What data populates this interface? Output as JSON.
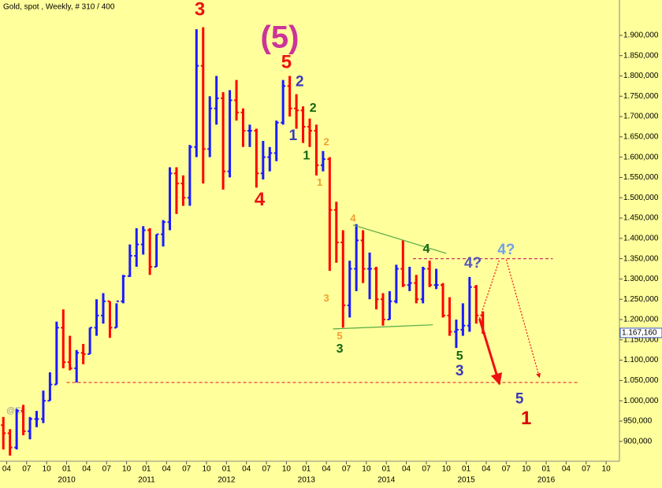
{
  "chart_data": {
    "type": "ohlc",
    "title": "Gold, spot , Weekly, # 310 / 400",
    "watermark": "@Eli",
    "up_color": "#1a1aff",
    "down_color": "#ff0000",
    "x": [
      "2009-03",
      "2009-04",
      "2009-05",
      "2009-06",
      "2009-07",
      "2009-08",
      "2009-09",
      "2009-10",
      "2009-11",
      "2009-12",
      "2010-01",
      "2010-02",
      "2010-03",
      "2010-04",
      "2010-05",
      "2010-06",
      "2010-07",
      "2010-08",
      "2010-09",
      "2010-10",
      "2010-11",
      "2010-12",
      "2011-01",
      "2011-02",
      "2011-03",
      "2011-04",
      "2011-05",
      "2011-06",
      "2011-07",
      "2011-08",
      "2011-09",
      "2011-10",
      "2011-11",
      "2011-12",
      "2012-01",
      "2012-02",
      "2012-03",
      "2012-04",
      "2012-05",
      "2012-06",
      "2012-07",
      "2012-08",
      "2012-09",
      "2012-10",
      "2012-11",
      "2012-12",
      "2013-01",
      "2013-02",
      "2013-03",
      "2013-04",
      "2013-05",
      "2013-06",
      "2013-07",
      "2013-08",
      "2013-09",
      "2013-10",
      "2013-11",
      "2013-12",
      "2014-01",
      "2014-02",
      "2014-03",
      "2014-04",
      "2014-05",
      "2014-06",
      "2014-07",
      "2014-08",
      "2014-09",
      "2014-10",
      "2014-11",
      "2014-12",
      "2015-01",
      "2015-02",
      "2015-03"
    ],
    "open": [
      940,
      920,
      885,
      975,
      925,
      955,
      955,
      1000,
      1040,
      1180,
      1095,
      1080,
      1118,
      1115,
      1180,
      1210,
      1245,
      1180,
      1245,
      1307,
      1357,
      1385,
      1420,
      1330,
      1410,
      1440,
      1560,
      1535,
      1500,
      1625,
      1825,
      1620,
      1720,
      1745,
      1565,
      1740,
      1710,
      1665,
      1665,
      1560,
      1600,
      1610,
      1685,
      1775,
      1720,
      1715,
      1675,
      1665,
      1580,
      1595,
      1470,
      1390,
      1235,
      1325,
      1395,
      1325,
      1325,
      1250,
      1200,
      1245,
      1325,
      1285,
      1290,
      1250,
      1325,
      1285,
      1285,
      1210,
      1170,
      1175,
      1185,
      1280,
      1210
    ],
    "high": [
      960,
      930,
      980,
      990,
      960,
      975,
      1025,
      1070,
      1195,
      1225,
      1160,
      1125,
      1140,
      1180,
      1250,
      1265,
      1245,
      1240,
      1310,
      1385,
      1425,
      1430,
      1425,
      1410,
      1445,
      1575,
      1575,
      1555,
      1630,
      1915,
      1920,
      1750,
      1800,
      1760,
      1765,
      1790,
      1720,
      1680,
      1670,
      1640,
      1625,
      1690,
      1790,
      1800,
      1755,
      1725,
      1695,
      1680,
      1615,
      1600,
      1490,
      1420,
      1345,
      1435,
      1420,
      1365,
      1330,
      1265,
      1270,
      1335,
      1395,
      1330,
      1310,
      1330,
      1345,
      1325,
      1290,
      1255,
      1200,
      1240,
      1305,
      1285,
      1220
    ],
    "low": [
      880,
      865,
      880,
      915,
      905,
      935,
      945,
      1000,
      1040,
      1080,
      1075,
      1045,
      1090,
      1115,
      1160,
      1190,
      1155,
      1180,
      1240,
      1305,
      1330,
      1360,
      1310,
      1330,
      1380,
      1420,
      1460,
      1480,
      1480,
      1600,
      1535,
      1600,
      1680,
      1520,
      1550,
      1690,
      1625,
      1625,
      1525,
      1545,
      1565,
      1590,
      1680,
      1700,
      1670,
      1635,
      1625,
      1555,
      1565,
      1320,
      1340,
      1180,
      1205,
      1270,
      1290,
      1250,
      1225,
      1185,
      1200,
      1240,
      1280,
      1270,
      1240,
      1240,
      1280,
      1275,
      1205,
      1160,
      1130,
      1160,
      1170,
      1190,
      1165
    ],
    "close": [
      920,
      885,
      975,
      925,
      955,
      955,
      1000,
      1040,
      1180,
      1095,
      1080,
      1118,
      1115,
      1180,
      1210,
      1245,
      1180,
      1245,
      1307,
      1357,
      1385,
      1420,
      1330,
      1410,
      1440,
      1560,
      1535,
      1500,
      1625,
      1825,
      1620,
      1720,
      1745,
      1565,
      1740,
      1710,
      1665,
      1665,
      1560,
      1600,
      1610,
      1685,
      1775,
      1720,
      1715,
      1675,
      1665,
      1580,
      1595,
      1470,
      1390,
      1235,
      1325,
      1395,
      1325,
      1325,
      1250,
      1200,
      1245,
      1325,
      1285,
      1290,
      1250,
      1325,
      1285,
      1285,
      1210,
      1170,
      1175,
      1185,
      1280,
      1210,
      1167
    ],
    "xlim": [
      "2009-03",
      "2016-12"
    ],
    "ylim": [
      853,
      1987
    ],
    "xticks": [
      {
        "value": "2009-04",
        "label": "04"
      },
      {
        "value": "2009-07",
        "label": "07"
      },
      {
        "value": "2009-10",
        "label": "10"
      },
      {
        "value": "2010-01",
        "label": "01"
      },
      {
        "value": "2010-04",
        "label": "04"
      },
      {
        "value": "2010-07",
        "label": "07"
      },
      {
        "value": "2010-10",
        "label": "10"
      },
      {
        "value": "2011-01",
        "label": "01"
      },
      {
        "value": "2011-04",
        "label": "04"
      },
      {
        "value": "2011-07",
        "label": "07"
      },
      {
        "value": "2011-10",
        "label": "10"
      },
      {
        "value": "2012-01",
        "label": "01"
      },
      {
        "value": "2012-04",
        "label": "04"
      },
      {
        "value": "2012-07",
        "label": "07"
      },
      {
        "value": "2012-10",
        "label": "10"
      },
      {
        "value": "2013-01",
        "label": "01"
      },
      {
        "value": "2013-04",
        "label": "04"
      },
      {
        "value": "2013-07",
        "label": "07"
      },
      {
        "value": "2013-10",
        "label": "10"
      },
      {
        "value": "2014-01",
        "label": "01"
      },
      {
        "value": "2014-04",
        "label": "04"
      },
      {
        "value": "2014-07",
        "label": "07"
      },
      {
        "value": "2014-10",
        "label": "10"
      },
      {
        "value": "2015-01",
        "label": "01"
      },
      {
        "value": "2015-04",
        "label": "04"
      },
      {
        "value": "2015-07",
        "label": "07"
      },
      {
        "value": "2015-10",
        "label": "10"
      },
      {
        "value": "2016-01",
        "label": "01"
      },
      {
        "value": "2016-04",
        "label": "04"
      },
      {
        "value": "2016-07",
        "label": "07"
      },
      {
        "value": "2016-10",
        "label": "10"
      }
    ],
    "year_labels": [
      {
        "value": "2010-01",
        "label": "2010"
      },
      {
        "value": "2011-01",
        "label": "2011"
      },
      {
        "value": "2012-01",
        "label": "2012"
      },
      {
        "value": "2013-01",
        "label": "2013"
      },
      {
        "value": "2014-01",
        "label": "2014"
      },
      {
        "value": "2015-01",
        "label": "2015"
      },
      {
        "value": "2016-01",
        "label": "2016"
      }
    ],
    "yticks": [
      {
        "value": 900,
        "label": "900,000"
      },
      {
        "value": 950,
        "label": "950,000"
      },
      {
        "value": 1000,
        "label": "1.000,000"
      },
      {
        "value": 1050,
        "label": "1.050,000"
      },
      {
        "value": 1100,
        "label": "1.100,000"
      },
      {
        "value": 1150,
        "label": "1.150,000"
      },
      {
        "value": 1200,
        "label": "1.200,000"
      },
      {
        "value": 1250,
        "label": "1.250,000"
      },
      {
        "value": 1300,
        "label": "1.300,000"
      },
      {
        "value": 1350,
        "label": "1.350,000"
      },
      {
        "value": 1400,
        "label": "1.400,000"
      },
      {
        "value": 1450,
        "label": "1.450,000"
      },
      {
        "value": 1500,
        "label": "1.500,000"
      },
      {
        "value": 1550,
        "label": "1.550,000"
      },
      {
        "value": 1600,
        "label": "1.600,000"
      },
      {
        "value": 1650,
        "label": "1.650,000"
      },
      {
        "value": 1700,
        "label": "1.700,000"
      },
      {
        "value": 1750,
        "label": "1.750,000"
      },
      {
        "value": 1800,
        "label": "1.800,000"
      },
      {
        "value": 1850,
        "label": "1.850,000"
      },
      {
        "value": 1900,
        "label": "1.900,000"
      }
    ],
    "last_price": {
      "value": 1167.16,
      "label": "1.167,160"
    },
    "annotations": [
      {
        "text": "(5)",
        "x": "2012-09",
        "y": 1890,
        "color": "#cc3399",
        "size": "xl"
      },
      {
        "text": "3",
        "x": "2011-09",
        "y": 1962,
        "color": "#ee1111",
        "size": "l"
      },
      {
        "text": "5",
        "x": "2012-10",
        "y": 1832,
        "color": "#ee1111",
        "size": "l"
      },
      {
        "text": "2",
        "x": "2012-12",
        "y": 1784,
        "color": "#3b3bb8",
        "size": "m"
      },
      {
        "text": "2",
        "x": "2013-02",
        "y": 1720,
        "color": "#116611",
        "size": "s"
      },
      {
        "text": "1",
        "x": "2012-11",
        "y": 1652,
        "color": "#3b3bb8",
        "size": "m"
      },
      {
        "text": "1",
        "x": "2013-01",
        "y": 1603,
        "color": "#116611",
        "size": "s"
      },
      {
        "text": "2",
        "x": "2013-04",
        "y": 1636,
        "color": "#f0a030",
        "size": "xs"
      },
      {
        "text": "1",
        "x": "2013-03",
        "y": 1536,
        "color": "#f0a030",
        "size": "xs"
      },
      {
        "text": "4",
        "x": "2012-06",
        "y": 1493,
        "color": "#ee1111",
        "size": "l"
      },
      {
        "text": "4",
        "x": "2013-08",
        "y": 1448,
        "color": "#f0a030",
        "size": "xs"
      },
      {
        "text": "3",
        "x": "2013-04",
        "y": 1251,
        "color": "#f0a030",
        "size": "xs"
      },
      {
        "text": "5",
        "x": "2013-06",
        "y": 1158,
        "color": "#f0a030",
        "size": "xs"
      },
      {
        "text": "3",
        "x": "2013-06",
        "y": 1127,
        "color": "#116611",
        "size": "s"
      },
      {
        "text": "4",
        "x": "2014-07",
        "y": 1373,
        "color": "#116611",
        "size": "s"
      },
      {
        "text": "4?",
        "x": "2015-02",
        "y": 1338,
        "color": "#5555bb",
        "size": "m"
      },
      {
        "text": "4?",
        "x": "2015-07",
        "y": 1371,
        "color": "#6fa0e8",
        "size": "m"
      },
      {
        "text": "5",
        "x": "2014-12",
        "y": 1109,
        "color": "#116611",
        "size": "s"
      },
      {
        "text": "3",
        "x": "2014-12",
        "y": 1072,
        "color": "#3b3bb8",
        "size": "m"
      },
      {
        "text": "5",
        "x": "2015-09",
        "y": 1003,
        "color": "#3b3bb8",
        "size": "m"
      },
      {
        "text": "1",
        "x": "2015-10",
        "y": 954,
        "color": "#dd0000",
        "size": "l"
      }
    ],
    "lines": [
      {
        "x1": "2013-08",
        "y1": 1433,
        "x2": "2014-10",
        "y2": 1363,
        "color": "#55aa44",
        "style": "solid"
      },
      {
        "x1": "2013-05",
        "y1": 1177,
        "x2": "2014-08",
        "y2": 1187,
        "color": "#55aa44",
        "style": "solid"
      },
      {
        "x1": "2010-01",
        "y1": 1045,
        "x2": "2016-06",
        "y2": 1045,
        "color": "#dd3333",
        "style": "dashed"
      },
      {
        "x1": "2014-05",
        "y1": 1350,
        "x2": "2016-02",
        "y2": 1350,
        "color": "#cc3366",
        "style": "dashed"
      },
      {
        "x1": "2015-03",
        "y1": 1202,
        "x2": "2015-06",
        "y2": 1041,
        "color": "#ee1111",
        "style": "arrow"
      },
      {
        "x1": "2015-03",
        "y1": 1202,
        "x2": "2015-06",
        "y2": 1348,
        "color": "#ee1111",
        "style": "dotted"
      },
      {
        "x1": "2015-07",
        "y1": 1348,
        "x2": "2015-12",
        "y2": 1057,
        "color": "#ee1111",
        "style": "dotted-arrow"
      }
    ]
  }
}
